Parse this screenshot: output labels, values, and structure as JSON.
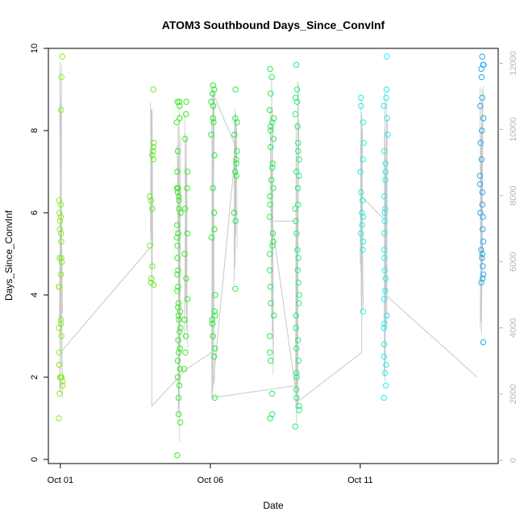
{
  "chart_data": {
    "type": "scatter",
    "title": "ATOM3 Southbound Days_Since_ConvInf",
    "xlabel": "Date",
    "ylabel": "Days_Since_ConvInf",
    "x_ticks": [
      {
        "value": 0,
        "label": "Oct 01"
      },
      {
        "value": 5,
        "label": "Oct 06"
      },
      {
        "value": 10,
        "label": "Oct 11"
      }
    ],
    "xlim": [
      -0.4,
      14.6
    ],
    "ylim": [
      -0.1,
      10.0
    ],
    "y_ticks": [
      0,
      2,
      4,
      6,
      8,
      10
    ],
    "y2_ticks": [
      0,
      2000,
      4000,
      6000,
      8000,
      10000,
      12000
    ],
    "y2lim": [
      -100,
      12450
    ],
    "grid": false,
    "line_color": "#c8c8c8",
    "date_groups": [
      {
        "x": 0.02,
        "color": "#88ee22",
        "values": [
          9.8,
          9.3,
          8.5,
          6.3,
          6.2,
          6.0,
          5.9,
          5.8,
          5.6,
          5.5,
          5.3,
          4.9,
          4.9,
          4.8,
          4.5,
          4.2,
          4.2,
          3.4,
          3.3,
          3.2,
          3.0,
          2.6,
          2.3,
          2.0,
          2.0,
          2.0,
          1.9,
          1.8,
          1.6,
          1.0
        ]
      },
      {
        "x": 3.05,
        "color": "#66ee22",
        "values": [
          9.0,
          7.7,
          7.6,
          7.5,
          7.4,
          7.3,
          6.4,
          6.3,
          6.1,
          5.2,
          4.7,
          4.4,
          4.3,
          4.25
        ]
      },
      {
        "x": 3.95,
        "color": "#33ee22",
        "values": [
          8.7,
          8.7,
          8.6,
          8.3,
          8.2,
          7.5,
          7.0,
          6.6,
          6.6,
          6.5,
          6.4,
          6.3,
          6.1,
          6.0,
          5.7,
          5.5,
          5.4,
          5.2,
          4.9,
          4.6,
          4.5,
          4.2,
          4.1,
          3.8,
          3.7,
          3.6,
          3.5,
          3.4,
          3.2,
          3.1,
          2.9,
          2.7,
          2.6,
          2.4,
          2.2,
          2.0,
          1.8,
          1.5,
          1.1,
          0.9,
          0.1
        ]
      },
      {
        "x": 4.2,
        "color": "#33ee22",
        "values": [
          8.7,
          8.4,
          7.8,
          7.0,
          6.6,
          6.1,
          5.5,
          5.0,
          4.4,
          3.9,
          3.4,
          3.0,
          2.6,
          2.2
        ]
      },
      {
        "x": 5.1,
        "color": "#22ee33",
        "values": [
          9.1,
          9.0,
          8.9,
          8.7,
          8.6,
          8.3,
          8.2,
          7.9,
          7.4,
          6.6,
          6.0,
          5.6,
          5.4,
          4.0,
          3.6,
          3.5,
          3.4,
          3.3,
          3.0,
          2.7,
          2.5,
          1.5
        ]
      },
      {
        "x": 5.85,
        "color": "#22ee44",
        "values": [
          9.0,
          8.3,
          8.2,
          7.9,
          7.5,
          7.3,
          7.2,
          7.0,
          6.9,
          6.0,
          5.8,
          4.15
        ]
      },
      {
        "x": 7.05,
        "color": "#22ee55",
        "values": [
          9.5,
          9.3,
          8.9,
          8.5,
          8.3,
          8.2,
          8.1,
          8.0,
          7.8,
          7.6,
          7.2,
          7.1,
          6.8,
          6.6,
          6.4,
          6.2,
          5.9,
          5.5,
          5.3,
          5.2,
          5.0,
          4.6,
          4.2,
          3.8,
          3.5,
          3.0,
          2.6,
          2.4,
          1.6,
          1.1,
          1.0
        ]
      },
      {
        "x": 7.9,
        "color": "#22ee77",
        "values": [
          9.6,
          9.0,
          8.8,
          8.7,
          8.4,
          8.1,
          7.7,
          7.5,
          7.3,
          7.0,
          6.9,
          6.6,
          6.2,
          6.1,
          5.8,
          5.5,
          5.1,
          4.9,
          4.6,
          4.3,
          4.0,
          3.8,
          3.5,
          3.2,
          2.9,
          2.7,
          2.4,
          2.1,
          2.0,
          1.7,
          1.5,
          1.3,
          1.2,
          0.8
        ]
      },
      {
        "x": 10.05,
        "color": "#22eedd",
        "values": [
          8.8,
          8.6,
          8.2,
          7.7,
          7.3,
          7.0,
          6.5,
          6.3,
          6.0,
          5.9,
          5.7,
          5.5,
          5.3,
          5.1,
          3.6
        ]
      },
      {
        "x": 10.85,
        "color": "#22eeee",
        "values": [
          9.8,
          9.0,
          8.8,
          8.6,
          8.3,
          7.9,
          7.5,
          7.2,
          7.0,
          6.8,
          6.4,
          6.1,
          6.0,
          5.8,
          5.5,
          5.1,
          4.9,
          4.6,
          4.4,
          4.1,
          3.9,
          3.5,
          3.3,
          3.2,
          2.8,
          2.5,
          2.3,
          2.1,
          1.8,
          1.5
        ]
      },
      {
        "x": 14.05,
        "color": "#22aaee",
        "values": [
          9.8,
          9.6,
          9.6,
          9.5,
          9.3,
          8.8,
          8.6,
          8.3,
          8.0,
          7.7,
          7.3,
          6.9,
          6.7,
          6.5,
          6.2,
          6.0,
          5.9,
          5.6,
          5.3,
          5.1,
          5.0,
          4.9,
          4.7,
          4.5,
          4.4,
          4.3,
          2.85
        ]
      }
    ],
    "line_anchors": [
      {
        "x": 0.0,
        "y": 2.6
      },
      {
        "x": 3.05,
        "y": 5.2
      },
      {
        "x": 3.05,
        "y": 1.3
      },
      {
        "x": 3.95,
        "y": 2.0
      },
      {
        "x": 4.2,
        "y": 2.2
      },
      {
        "x": 5.05,
        "y": 2.6
      },
      {
        "x": 5.1,
        "y": 8.9
      },
      {
        "x": 5.85,
        "y": 7.6
      },
      {
        "x": 5.05,
        "y": 1.5
      },
      {
        "x": 7.9,
        "y": 1.8
      },
      {
        "x": 7.9,
        "y": 5.8
      },
      {
        "x": 7.05,
        "y": 5.8
      },
      {
        "x": 7.9,
        "y": 1.4
      },
      {
        "x": 10.05,
        "y": 2.6
      },
      {
        "x": 10.05,
        "y": 6.4
      },
      {
        "x": 10.85,
        "y": 5.8
      },
      {
        "x": 10.85,
        "y": 4.0
      },
      {
        "x": 13.9,
        "y": 2.0
      }
    ]
  }
}
